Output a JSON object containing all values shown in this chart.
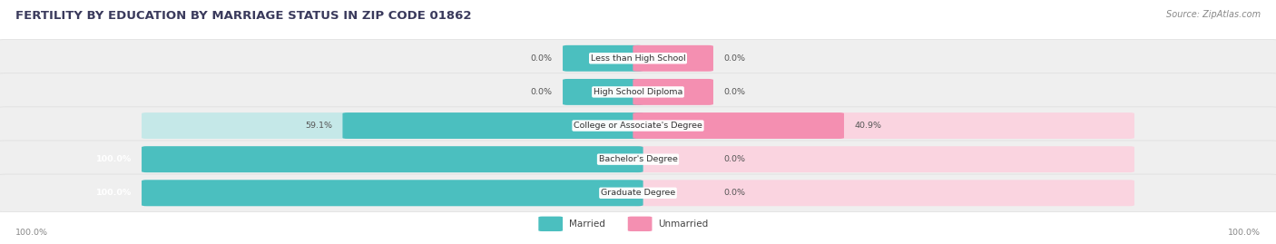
{
  "title": "FERTILITY BY EDUCATION BY MARRIAGE STATUS IN ZIP CODE 01862",
  "source": "Source: ZipAtlas.com",
  "categories": [
    "Less than High School",
    "High School Diploma",
    "College or Associate's Degree",
    "Bachelor's Degree",
    "Graduate Degree"
  ],
  "married": [
    0.0,
    0.0,
    59.1,
    100.0,
    100.0
  ],
  "unmarried": [
    0.0,
    0.0,
    40.9,
    0.0,
    0.0
  ],
  "married_color": "#4BBFBF",
  "unmarried_color": "#F48FB1",
  "row_bg_color": "#EFEFEF",
  "label_color": "#555555",
  "title_color": "#3A3A5C",
  "source_color": "#888888",
  "background_color": "#FFFFFF",
  "figsize": [
    14.06,
    2.69
  ],
  "dpi": 100,
  "bar_bg_married": "#C5E8E8",
  "bar_bg_unmarried": "#FAD4E0",
  "zero_bar_width": 0.055
}
